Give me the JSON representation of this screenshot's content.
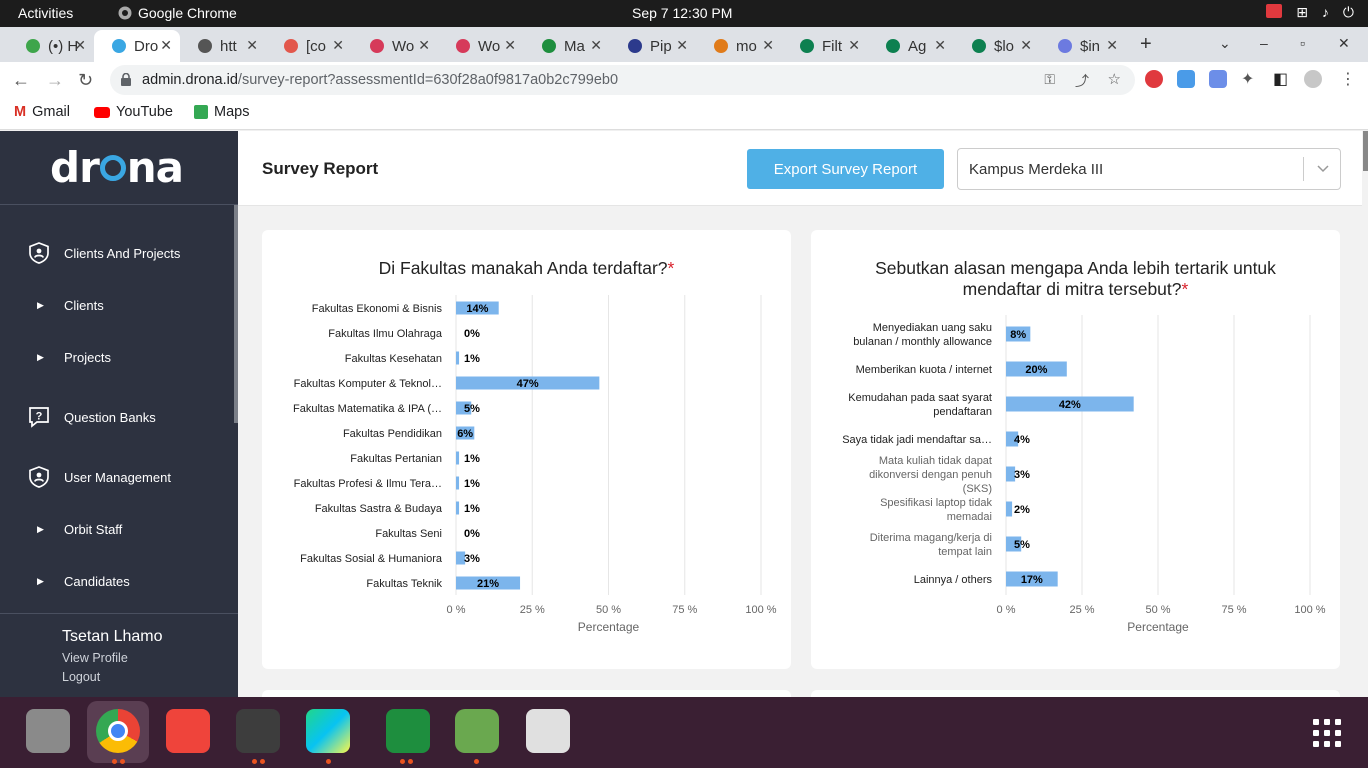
{
  "system": {
    "activities": "Activities",
    "app_name": "Google Chrome",
    "clock": "Sep 7  12:30 PM"
  },
  "tabs": [
    {
      "label": "(•) H",
      "color": "#3ea54b"
    },
    {
      "label": "Dro",
      "color": "#3aa7e3"
    },
    {
      "label": "htt",
      "color": "#555"
    },
    {
      "label": "[co",
      "color": "#e2574c"
    },
    {
      "label": "Wo",
      "color": "#d63a5a"
    },
    {
      "label": "Wo",
      "color": "#d63a5a"
    },
    {
      "label": "Ma",
      "color": "#1e8e3e"
    },
    {
      "label": "Pip",
      "color": "#2c3a8c"
    },
    {
      "label": "mo",
      "color": "#e07b1a"
    },
    {
      "label": "Filt",
      "color": "#0d8050"
    },
    {
      "label": "Ag",
      "color": "#0d8050"
    },
    {
      "label": "$lo",
      "color": "#0d8050"
    },
    {
      "label": "$in",
      "color": "#6c7ae0"
    }
  ],
  "address": {
    "host": "admin.drona.id",
    "path": "/survey-report?assessmentId=630f28a0f9817a0b2c799eb0"
  },
  "bookmarks": [
    {
      "label": "Gmail",
      "color": "#d93025"
    },
    {
      "label": "YouTube",
      "color": "#ff0000"
    },
    {
      "label": "Maps",
      "color": "#34a853"
    }
  ],
  "sidebar": {
    "logo_left": "dr",
    "logo_right": "na",
    "items": [
      {
        "label": "Clients And Projects",
        "type": "section",
        "icon": "shield-user-icon"
      },
      {
        "label": "Clients",
        "type": "sub"
      },
      {
        "label": "Projects",
        "type": "sub"
      },
      {
        "label": "Question Banks",
        "type": "section",
        "icon": "question-icon"
      },
      {
        "label": "User Management",
        "type": "section",
        "icon": "shield-user-icon"
      },
      {
        "label": "Orbit Staff",
        "type": "sub"
      },
      {
        "label": "Candidates",
        "type": "sub"
      }
    ],
    "user_name": "Tsetan Lhamo",
    "view_profile": "View Profile",
    "logout": "Logout"
  },
  "header": {
    "title": "Survey Report",
    "export_label": "Export Survey Report",
    "selected_project": "Kampus Merdeka III"
  },
  "chart_data": [
    {
      "type": "bar",
      "orientation": "horizontal",
      "title": "Di Fakultas manakah Anda terdaftar?",
      "required_mark": "*",
      "categories": [
        "Fakultas Ekonomi & Bisnis",
        "Fakultas Ilmu Olahraga",
        "Fakultas Kesehatan",
        "Fakultas Komputer & Teknol…",
        "Fakultas Matematika & IPA (…",
        "Fakultas Pendidikan",
        "Fakultas Pertanian",
        "Fakultas Profesi & Ilmu Tera…",
        "Fakultas Sastra & Budaya",
        "Fakultas Seni",
        "Fakultas Sosial & Humaniora",
        "Fakultas Teknik"
      ],
      "values": [
        14,
        0,
        1,
        47,
        5,
        6,
        1,
        1,
        1,
        0,
        3,
        21
      ],
      "value_labels": [
        "14%",
        "0%",
        "1%",
        "47%",
        "5%",
        "6%",
        "1%",
        "1%",
        "1%",
        "0%",
        "3%",
        "21%"
      ],
      "xlabel": "Percentage",
      "xticks": [
        "0 %",
        "25 %",
        "50 %",
        "75 %",
        "100 %"
      ],
      "xlim": [
        0,
        100
      ],
      "bar_color": "#7cb5ec",
      "grid": true
    },
    {
      "type": "bar",
      "orientation": "horizontal",
      "title_lines": [
        "Sebutkan alasan mengapa Anda lebih tertarik untuk",
        "mendaftar di mitra tersebut?"
      ],
      "required_mark": "*",
      "categories": [
        [
          "Menyediakan uang saku",
          "bulanan / monthly allowance"
        ],
        [
          "Memberikan kuota / internet"
        ],
        [
          "Kemudahan pada saat syarat",
          "pendaftaran"
        ],
        [
          "Saya tidak jadi mendaftar sa…"
        ],
        [
          "Mata kuliah tidak dapat",
          "dikonversi dengan penuh",
          "(SKS)"
        ],
        [
          "Spesifikasi laptop tidak",
          "memadai"
        ],
        [
          "Diterima magang/kerja di",
          "tempat lain"
        ],
        [
          "Lainnya / others"
        ]
      ],
      "values": [
        8,
        20,
        42,
        4,
        3,
        2,
        5,
        17
      ],
      "value_labels": [
        "8%",
        "20%",
        "42%",
        "4%",
        "3%",
        "2%",
        "5%",
        "17%"
      ],
      "xlabel": "Percentage",
      "xticks": [
        "0 %",
        "25 %",
        "50 %",
        "75 %",
        "100 %"
      ],
      "xlim": [
        0,
        100
      ],
      "bar_color": "#7cb5ec",
      "grid": true
    }
  ]
}
